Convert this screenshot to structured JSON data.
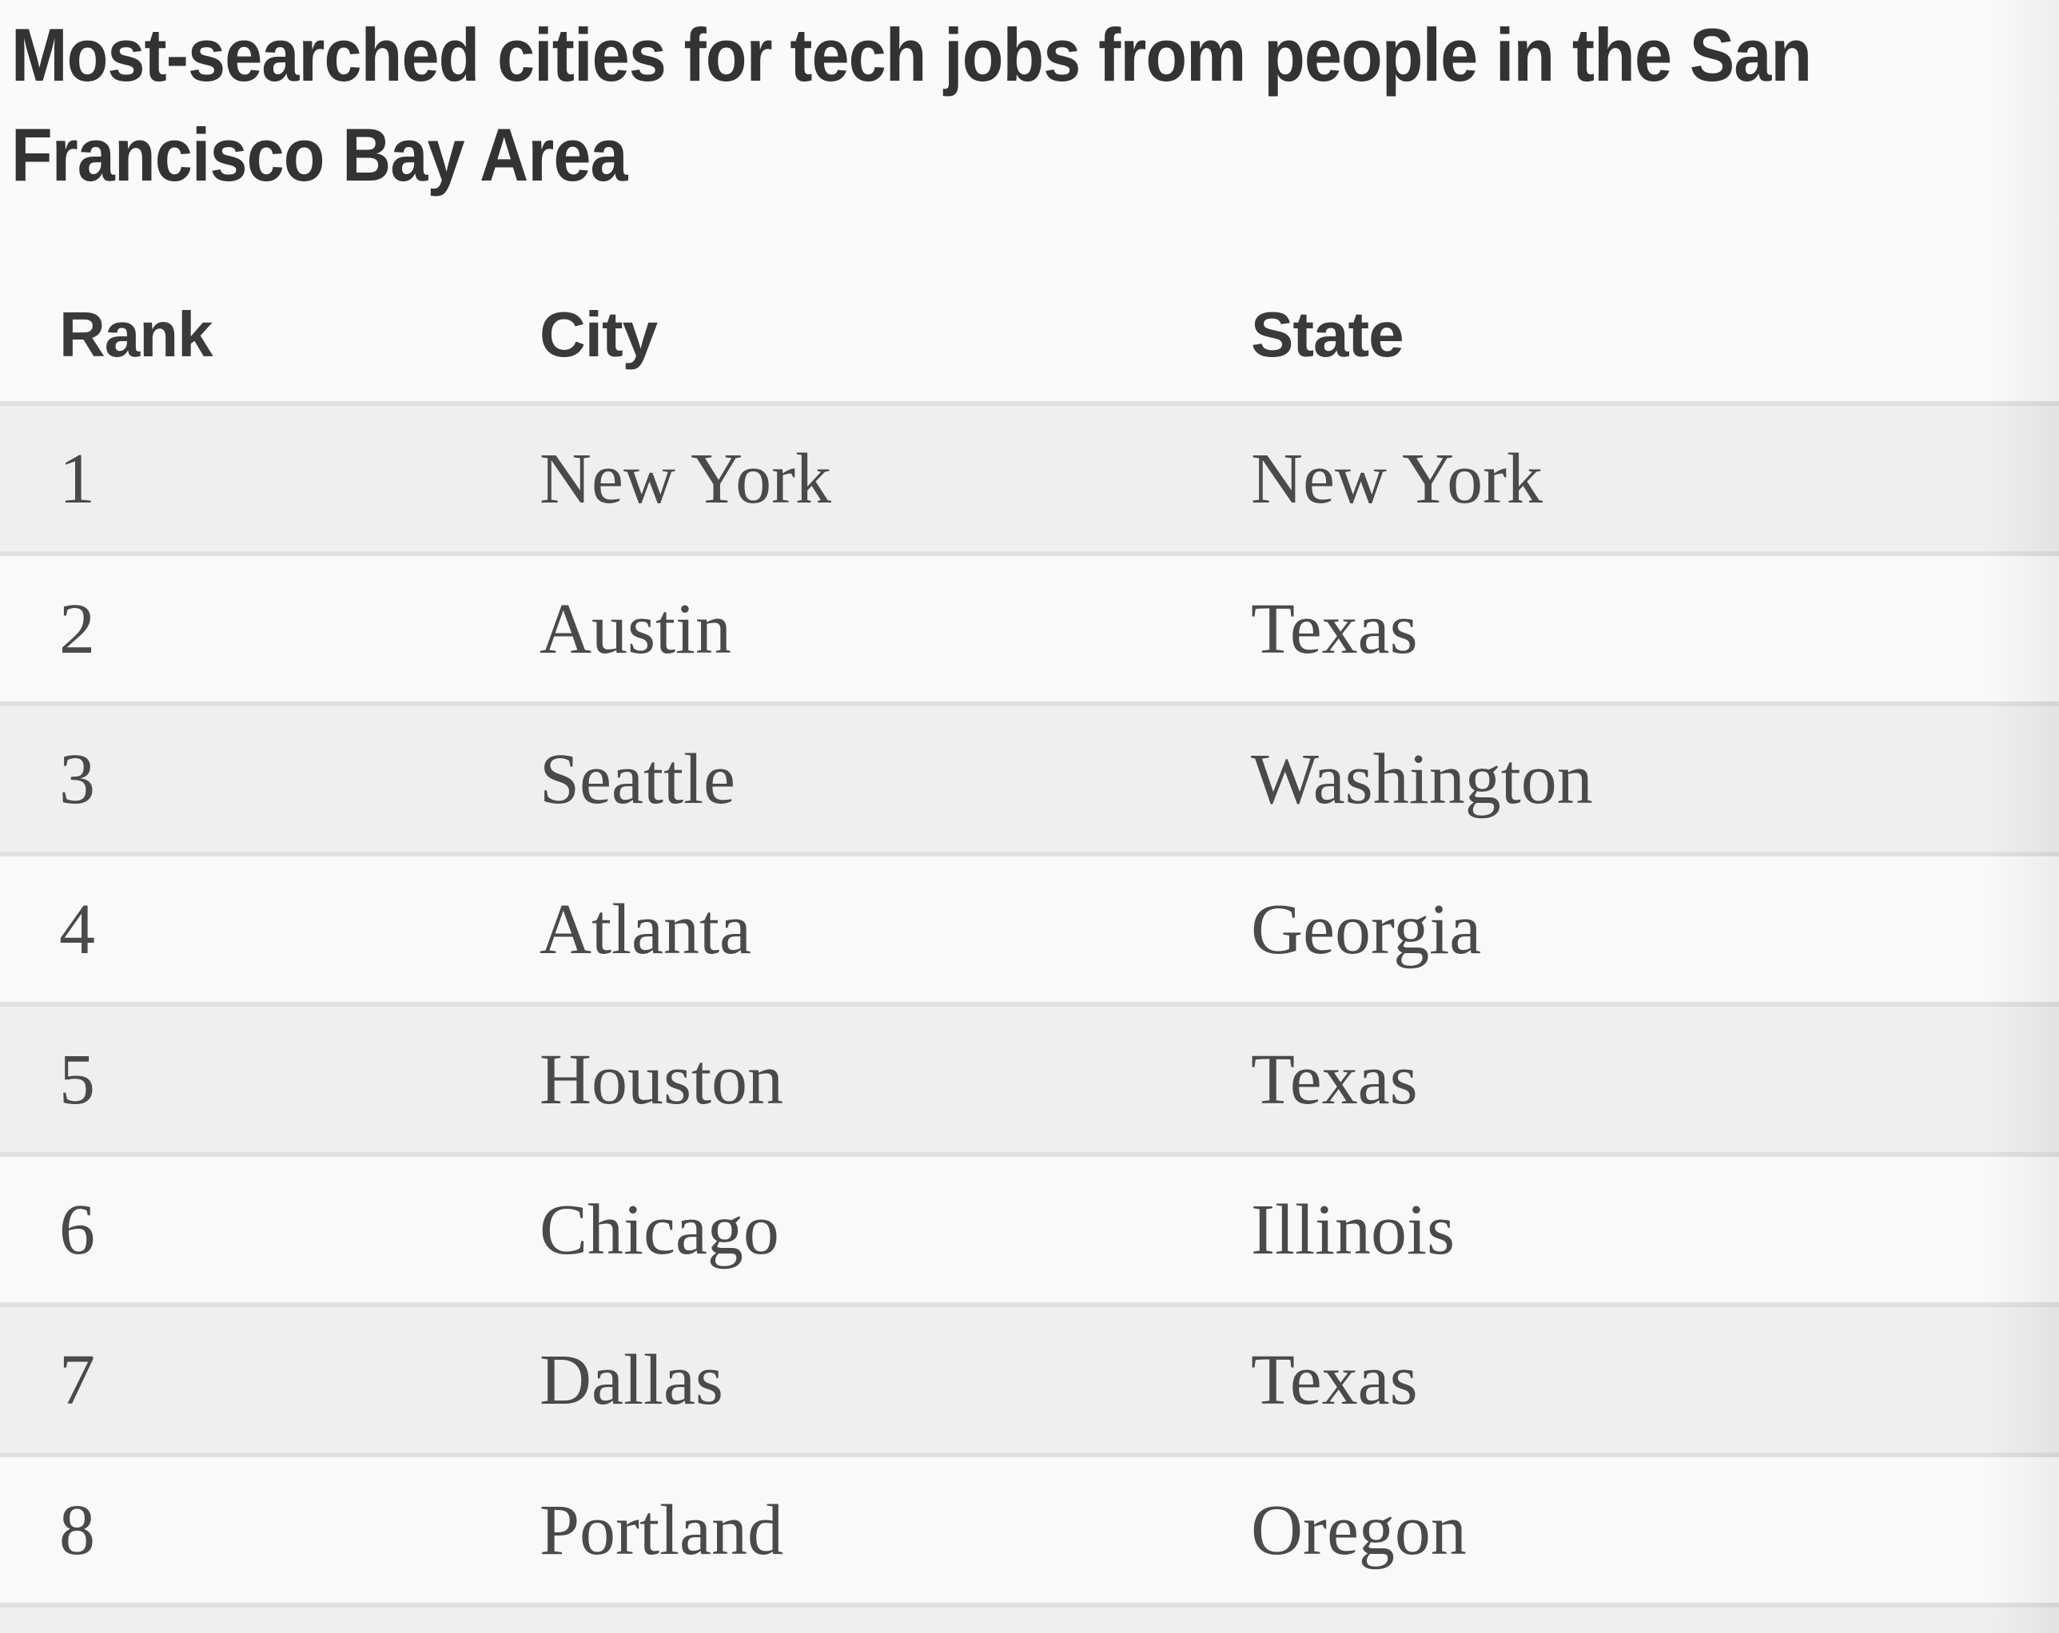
{
  "page": {
    "title": {
      "full": "Most-searched cities for tech jobs from people in the San Francisco Bay Area",
      "line1": "Most-searched cities for tech jobs from people in the San",
      "line2": "Francisco Bay Area"
    }
  },
  "table": {
    "columns": {
      "rank": "Rank",
      "city": "City",
      "state": "State"
    },
    "rows": [
      {
        "rank": "1",
        "city": "New York",
        "state": "New York"
      },
      {
        "rank": "2",
        "city": "Austin",
        "state": "Texas"
      },
      {
        "rank": "3",
        "city": "Seattle",
        "state": "Washington"
      },
      {
        "rank": "4",
        "city": "Atlanta",
        "state": "Georgia"
      },
      {
        "rank": "5",
        "city": "Houston",
        "state": "Texas"
      },
      {
        "rank": "6",
        "city": "Chicago",
        "state": "Illinois"
      },
      {
        "rank": "7",
        "city": "Dallas",
        "state": "Texas"
      },
      {
        "rank": "8",
        "city": "Portland",
        "state": "Oregon"
      }
    ]
  },
  "colors": {
    "page_background": "#fafafa",
    "row_shaded": "#efefef",
    "row_plain": "#f9f9f9",
    "divider": "#e0e0e0",
    "title_text": "#333333",
    "header_text": "#3a3a3a",
    "body_text": "#4a4a4a"
  },
  "chart_data": {
    "type": "table",
    "title": "Most-searched cities for tech jobs from people in the San Francisco Bay Area",
    "columns": [
      "Rank",
      "City",
      "State"
    ],
    "rows": [
      [
        "1",
        "New York",
        "New York"
      ],
      [
        "2",
        "Austin",
        "Texas"
      ],
      [
        "3",
        "Seattle",
        "Washington"
      ],
      [
        "4",
        "Atlanta",
        "Georgia"
      ],
      [
        "5",
        "Houston",
        "Texas"
      ],
      [
        "6",
        "Chicago",
        "Illinois"
      ],
      [
        "7",
        "Dallas",
        "Texas"
      ],
      [
        "8",
        "Portland",
        "Oregon"
      ]
    ],
    "layout": {
      "striped": true,
      "stripe_pattern": "odd rows shaded gray, even rows near-white",
      "ninth_row_cut_off_at_bottom": true
    }
  }
}
